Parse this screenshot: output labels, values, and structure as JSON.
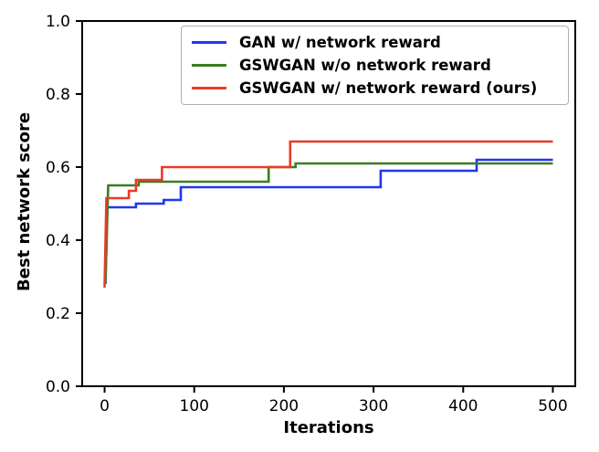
{
  "figure": {
    "background": "#ffffff",
    "axis_color": "#000000",
    "xlabel": "Iterations",
    "ylabel": "Best network score"
  },
  "chart_data": {
    "type": "line",
    "style": "step",
    "title": "",
    "xlabel": "Iterations",
    "ylabel": "Best network score",
    "grid": false,
    "legend_position": "upper center",
    "xlim": [
      -25,
      525
    ],
    "ylim": [
      0,
      1
    ],
    "x_ticks": {
      "values": [
        0,
        100,
        200,
        300,
        400,
        500
      ],
      "labels": [
        "0",
        "100",
        "200",
        "300",
        "400",
        "500"
      ]
    },
    "y_ticks": {
      "values": [
        0.0,
        0.2,
        0.4,
        0.6,
        0.8,
        1.0
      ],
      "labels": [
        "0.0",
        "0.2",
        "0.4",
        "0.6",
        "0.8",
        "1.0"
      ]
    },
    "series": [
      {
        "name": "GAN w/ network reward",
        "color": "#2236ee",
        "points": [
          [
            1,
            0.28
          ],
          [
            3,
            0.49
          ],
          [
            35,
            0.49
          ],
          [
            35,
            0.5
          ],
          [
            66,
            0.5
          ],
          [
            66,
            0.51
          ],
          [
            85,
            0.51
          ],
          [
            85,
            0.545
          ],
          [
            308,
            0.545
          ],
          [
            308,
            0.59
          ],
          [
            415,
            0.59
          ],
          [
            415,
            0.62
          ],
          [
            500,
            0.62
          ]
        ]
      },
      {
        "name": "GSWGAN w/o network reward",
        "color": "#3a7d23",
        "points": [
          [
            1,
            0.285
          ],
          [
            4,
            0.55
          ],
          [
            38,
            0.55
          ],
          [
            38,
            0.56
          ],
          [
            183,
            0.56
          ],
          [
            183,
            0.6
          ],
          [
            213,
            0.6
          ],
          [
            213,
            0.61
          ],
          [
            500,
            0.61
          ]
        ]
      },
      {
        "name": "GSWGAN w/ network reward (ours)",
        "color": "#ec3a28",
        "points": [
          [
            0,
            0.27
          ],
          [
            2,
            0.515
          ],
          [
            27,
            0.515
          ],
          [
            27,
            0.535
          ],
          [
            35,
            0.535
          ],
          [
            35,
            0.565
          ],
          [
            64,
            0.565
          ],
          [
            64,
            0.6
          ],
          [
            207,
            0.6
          ],
          [
            207,
            0.67
          ],
          [
            500,
            0.67
          ]
        ]
      }
    ]
  }
}
